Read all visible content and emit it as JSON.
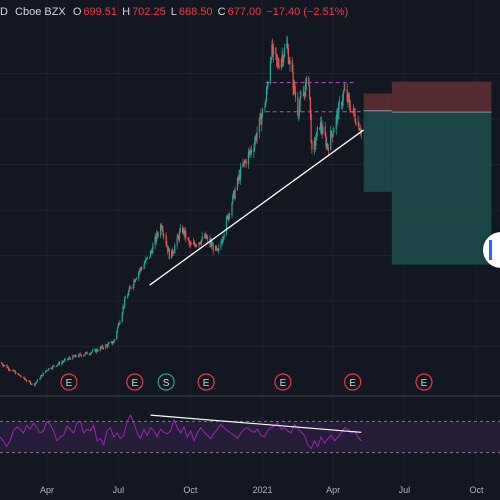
{
  "legend": {
    "symbol_tail": "D",
    "exchange": "Cboe BZX",
    "open_label": "O",
    "open": "699.51",
    "high_label": "H",
    "high": "702.25",
    "low_label": "L",
    "low": "668.50",
    "close_label": "C",
    "close": "677.00",
    "change": "−17.40 (−2.51%)"
  },
  "colors": {
    "background": "#131722",
    "up": "#26a69a",
    "down": "#ef5350",
    "rsi": "#9c27b0",
    "trendline": "#ffffff",
    "event_marker": "#f23645",
    "split_marker": "#26a69a",
    "stop_zone": "#5b2d33",
    "target_zone": "#1d4a4a"
  },
  "chart_data": [
    {
      "type": "candlestick",
      "x_axis": {
        "tick_labels": [
          "Apr",
          "Jul",
          "Oct",
          "2021",
          "Apr",
          "Jul",
          "Oct"
        ],
        "tick_dates": [
          "2020-04-01",
          "2020-07-01",
          "2020-10-01",
          "2021-01-01",
          "2021-04-01",
          "2021-07-01",
          "2021-10-01"
        ],
        "range": [
          "2020-02-01",
          "2021-10-31"
        ]
      },
      "ylim": [
        100,
        900
      ],
      "grid": true,
      "close_series": {
        "dates": [
          "2020-02-01",
          "2020-03-15",
          "2020-04-01",
          "2020-05-01",
          "2020-06-01",
          "2020-06-25",
          "2020-07-10",
          "2020-07-25",
          "2020-08-10",
          "2020-08-25",
          "2020-09-05",
          "2020-09-20",
          "2020-10-01",
          "2020-10-20",
          "2020-11-05",
          "2020-11-20",
          "2020-12-05",
          "2020-12-20",
          "2021-01-05",
          "2021-01-12",
          "2021-01-20",
          "2021-02-01",
          "2021-02-15",
          "2021-03-01",
          "2021-03-05",
          "2021-03-15",
          "2021-03-25",
          "2021-04-05",
          "2021-04-15",
          "2021-04-25",
          "2021-05-07"
        ],
        "values": [
          165,
          115,
          150,
          175,
          190,
          210,
          305,
          360,
          400,
          470,
          395,
          460,
          420,
          440,
          405,
          500,
          590,
          640,
          740,
          850,
          820,
          860,
          720,
          790,
          620,
          690,
          640,
          700,
          760,
          720,
          677
        ]
      },
      "last_candle": {
        "date": "2021-05-07",
        "open": 699.51,
        "high": 702.25,
        "low": 668.5,
        "close": 677.0,
        "change": -17.4,
        "change_pct": -2.51
      },
      "trendlines": [
        {
          "from": {
            "date": "2020-08-10",
            "value": 335
          },
          "to": {
            "date": "2021-05-10",
            "value": 676
          }
        }
      ],
      "horizontal_levels": [
        {
          "value": 780,
          "from": "2021-01-05",
          "to": "2021-05-01",
          "style": "dashed"
        },
        {
          "value": 716,
          "from": "2021-01-05",
          "to": "2021-05-10",
          "style": "dashed"
        }
      ],
      "positions": [
        {
          "side": "long",
          "start": "2021-05-10",
          "end": "2021-06-15",
          "stop": 756,
          "entry": 718,
          "target": 540
        },
        {
          "side": "long",
          "start": "2021-06-15",
          "end": "2021-10-20",
          "stop": 782,
          "entry": 715,
          "target": 380
        }
      ],
      "event_markers": [
        {
          "label": "E",
          "kind": "earnings",
          "date": "2020-04-29"
        },
        {
          "label": "E",
          "kind": "earnings",
          "date": "2020-07-22"
        },
        {
          "label": "S",
          "kind": "split",
          "date": "2020-08-31"
        },
        {
          "label": "E",
          "kind": "earnings",
          "date": "2020-10-21"
        },
        {
          "label": "E",
          "kind": "earnings",
          "date": "2021-01-27"
        },
        {
          "label": "E",
          "kind": "earnings",
          "date": "2021-04-26"
        },
        {
          "label": "E",
          "kind": "earnings",
          "date": "2021-07-26"
        }
      ]
    },
    {
      "type": "line",
      "indicator": "RSI",
      "ylim": [
        0,
        100
      ],
      "bands": [
        70,
        30
      ],
      "values": [
        50,
        45,
        38,
        45,
        58,
        63,
        60,
        55,
        65,
        60,
        68,
        62,
        55,
        58,
        70,
        66,
        58,
        45,
        50,
        52,
        64,
        60,
        55,
        68,
        70,
        55,
        60,
        58,
        65,
        45,
        48,
        40,
        58,
        62,
        50,
        55,
        48,
        52,
        70,
        78,
        68,
        55,
        48,
        60,
        52,
        62,
        58,
        50,
        60,
        56,
        54,
        58,
        72,
        62,
        55,
        63,
        50,
        58,
        45,
        55,
        62,
        56,
        52,
        48,
        55,
        60,
        66,
        62,
        58,
        55,
        52,
        48,
        55,
        60,
        62,
        58,
        56,
        60,
        52,
        50,
        58,
        62,
        64,
        68,
        60,
        62,
        58,
        55,
        66,
        62,
        56,
        52,
        40,
        35,
        45,
        38,
        50,
        42,
        48,
        52,
        45,
        50,
        55,
        62,
        60,
        55,
        58,
        50,
        45
      ],
      "trendline": {
        "from": {
          "index": 45,
          "value": 78
        },
        "to": {
          "index": 108,
          "value": 56
        }
      }
    }
  ]
}
